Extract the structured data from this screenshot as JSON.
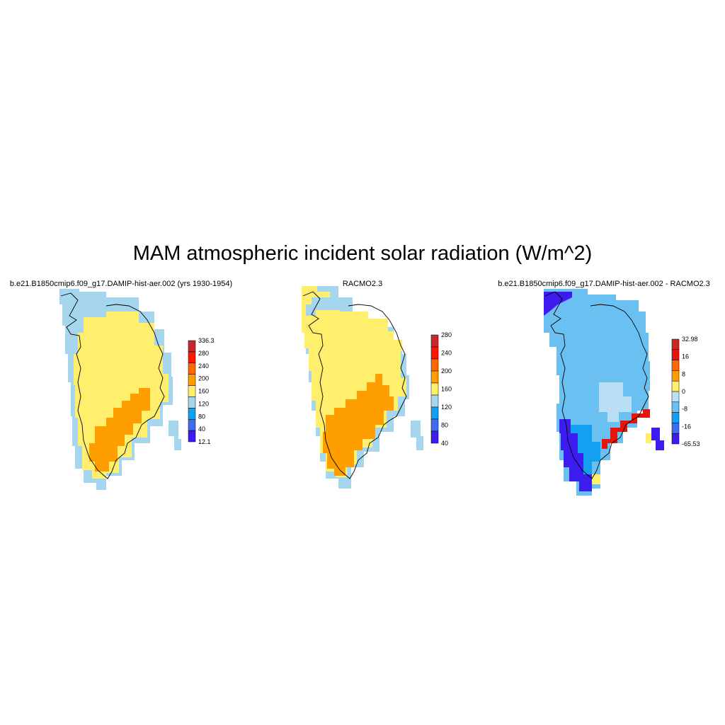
{
  "figure": {
    "title": "MAM atmospheric incident solar radiation (W/m^2)"
  },
  "palette": {
    "band_120_160": "#a6d6ee",
    "band_160_200": "#ffef6c",
    "band_200_240": "#ff9e00",
    "diff_pos_high": "#e8140c",
    "diff_neg_low": "#3d1cf0",
    "diff_neg_mid": "#14a0f0",
    "diff_zero": "#b8dff4"
  },
  "chart_data": [
    {
      "type": "heatmap",
      "title": "b.e21.B1850cmip6.f09_g17.DAMIP-hist-aer.002 (yrs 1930-1954)",
      "colorbar": {
        "labels": [
          "336.3",
          "280",
          "240",
          "200",
          "160",
          "120",
          "80",
          "40",
          "12.1"
        ],
        "colors": [
          "#c8282a",
          "#ff1500",
          "#ff6800",
          "#ff9e00",
          "#ffef6c",
          "#a6d6ee",
          "#14a0f0",
          "#3d6cf0",
          "#3d1cf0"
        ]
      }
    },
    {
      "type": "heatmap",
      "title": "RACMO2.3",
      "colorbar": {
        "labels": [
          "280",
          "240",
          "200",
          "160",
          "120",
          "80",
          "40"
        ],
        "colors": [
          "#c8282a",
          "#ff1500",
          "#ff6800",
          "#ff9e00",
          "#ffef6c",
          "#a6d6ee",
          "#14a0f0",
          "#3d6cf0",
          "#3d1cf0"
        ]
      }
    },
    {
      "type": "heatmap",
      "title": "b.e21.B1850cmip6.f09_g17.DAMIP-hist-aer.002 - RACMO2.3",
      "colorbar": {
        "labels": [
          "32.98",
          "16",
          "8",
          "0",
          "-8",
          "-16",
          "-65.53"
        ],
        "colors": [
          "#c8282a",
          "#e8140c",
          "#ff6800",
          "#ff9e00",
          "#ffef6c",
          "#b8dff4",
          "#6ac0f0",
          "#14a0f0",
          "#3d6cf0",
          "#3d1cf0"
        ]
      }
    }
  ]
}
